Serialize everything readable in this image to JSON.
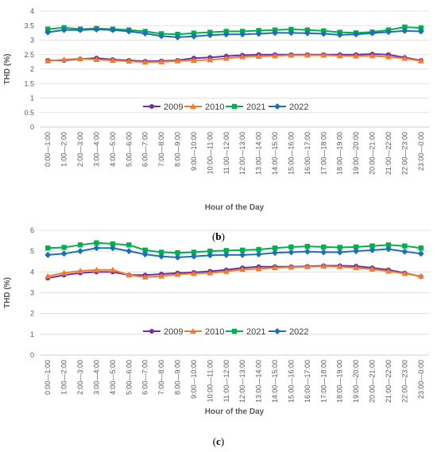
{
  "hours": [
    "0:00—1:00",
    "1:00—2:00",
    "2:00—3:00",
    "3:00—4:00",
    "4:00—5:00",
    "5:00—6:00",
    "6:00—7:00",
    "7:00—8:00",
    "8:00—9:00",
    "9:00—10:00",
    "10:00—11:00",
    "11:00—12:00",
    "12:00—13:00",
    "13:00—14:00",
    "14:00—15:00",
    "15:00—16:00",
    "16:00—17:00",
    "17:00—18:00",
    "18:00—19:00",
    "19:00—20:00",
    "20:00—21:00",
    "21:00—22:00",
    "22:00—23:00",
    "23:00—0:00"
  ],
  "colors": {
    "2009": "#7030a0",
    "2010": "#ed7d31",
    "2021": "#00b050",
    "2022": "#1f6fb4"
  },
  "chart_data": [
    {
      "type": "line",
      "panel_label": "b",
      "xlabel": "Hour of the Day",
      "ylabel": "THD (%)",
      "ylim": [
        0,
        4
      ],
      "yticks": [
        "0",
        "0.5",
        "1",
        "1.5",
        "2",
        "2.5",
        "3",
        "3.5",
        "4"
      ],
      "grid": true,
      "legend": "middle",
      "series": [
        {
          "name": "2009",
          "marker": "circle",
          "values": [
            2.3,
            2.3,
            2.35,
            2.38,
            2.33,
            2.3,
            2.27,
            2.28,
            2.3,
            2.38,
            2.4,
            2.45,
            2.48,
            2.5,
            2.5,
            2.5,
            2.5,
            2.5,
            2.5,
            2.5,
            2.52,
            2.5,
            2.4,
            2.3
          ]
        },
        {
          "name": "2010",
          "marker": "triangle",
          "values": [
            2.28,
            2.33,
            2.36,
            2.33,
            2.3,
            2.27,
            2.24,
            2.25,
            2.28,
            2.3,
            2.32,
            2.37,
            2.42,
            2.44,
            2.46,
            2.48,
            2.48,
            2.48,
            2.46,
            2.45,
            2.46,
            2.42,
            2.37,
            2.28
          ]
        },
        {
          "name": "2021",
          "marker": "square",
          "values": [
            3.38,
            3.43,
            3.38,
            3.4,
            3.38,
            3.35,
            3.3,
            3.22,
            3.2,
            3.24,
            3.27,
            3.3,
            3.3,
            3.33,
            3.35,
            3.37,
            3.35,
            3.32,
            3.27,
            3.25,
            3.28,
            3.35,
            3.45,
            3.42
          ]
        },
        {
          "name": "2022",
          "marker": "diamond",
          "values": [
            3.27,
            3.35,
            3.35,
            3.37,
            3.35,
            3.3,
            3.23,
            3.14,
            3.1,
            3.13,
            3.17,
            3.2,
            3.2,
            3.22,
            3.25,
            3.25,
            3.24,
            3.22,
            3.18,
            3.2,
            3.24,
            3.28,
            3.32,
            3.3
          ]
        }
      ]
    },
    {
      "type": "line",
      "panel_label": "c",
      "xlabel": "Hour of the Day",
      "ylabel": "THD (%)",
      "ylim": [
        0,
        6
      ],
      "yticks": [
        "0",
        "1",
        "2",
        "3",
        "4",
        "5",
        "6"
      ],
      "grid": true,
      "legend": "middle",
      "series": [
        {
          "name": "2009",
          "marker": "circle",
          "values": [
            3.7,
            3.85,
            3.95,
            4.0,
            4.0,
            3.85,
            3.85,
            3.9,
            3.95,
            3.98,
            4.03,
            4.1,
            4.2,
            4.25,
            4.25,
            4.25,
            4.27,
            4.3,
            4.3,
            4.28,
            4.2,
            4.1,
            3.95,
            3.78
          ]
        },
        {
          "name": "2010",
          "marker": "triangle",
          "values": [
            3.8,
            3.95,
            4.05,
            4.1,
            4.1,
            3.85,
            3.75,
            3.8,
            3.88,
            3.92,
            3.95,
            4.02,
            4.12,
            4.15,
            4.2,
            4.23,
            4.25,
            4.27,
            4.25,
            4.2,
            4.13,
            4.03,
            3.92,
            3.8
          ]
        },
        {
          "name": "2021",
          "marker": "square",
          "values": [
            5.15,
            5.18,
            5.3,
            5.4,
            5.35,
            5.3,
            5.05,
            4.95,
            4.92,
            4.95,
            5.0,
            5.03,
            5.05,
            5.08,
            5.15,
            5.2,
            5.23,
            5.2,
            5.18,
            5.2,
            5.25,
            5.3,
            5.25,
            5.15
          ]
        },
        {
          "name": "2022",
          "marker": "diamond",
          "values": [
            4.82,
            4.88,
            5.0,
            5.15,
            5.15,
            5.0,
            4.85,
            4.75,
            4.7,
            4.75,
            4.8,
            4.82,
            4.82,
            4.85,
            4.92,
            4.95,
            4.98,
            4.95,
            4.95,
            5.0,
            5.05,
            5.1,
            4.98,
            4.88
          ]
        }
      ]
    }
  ]
}
